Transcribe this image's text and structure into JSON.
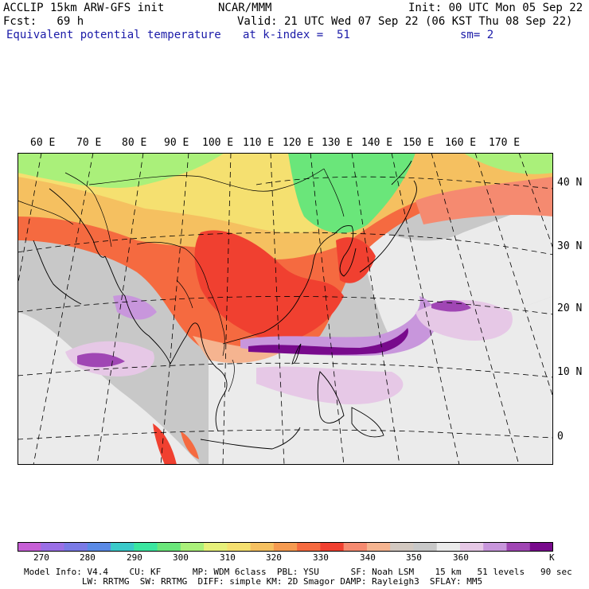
{
  "header": {
    "line1_left": "ACCLIP 15km ARW-GFS init",
    "line1_center": "NCAR/MMM",
    "line1_right": "Init: 00 UTC Mon 05 Sep 22",
    "line2_left": "Fcst:   69 h",
    "line2_right": "Valid: 21 UTC Wed 07 Sep 22 (06 KST Thu 08 Sep 22)",
    "line3_left": "Equivalent potential temperature",
    "line3_mid": "at k-index =  51",
    "line3_right": "sm= 2"
  },
  "map": {
    "longitude_labels": [
      "60 E",
      "70 E",
      "80 E",
      "90 E",
      "100 E",
      "110 E",
      "120 E",
      "130 E",
      "140 E",
      "150 E",
      "160 E",
      "170 E"
    ],
    "latitude_labels": [
      "40 N",
      "30 N",
      "20 N",
      "10 N",
      "0"
    ]
  },
  "colorbar": {
    "unit": "K",
    "tick_labels": [
      "270",
      "280",
      "290",
      "300",
      "310",
      "320",
      "330",
      "340",
      "350",
      "360"
    ],
    "colors": [
      "#c75fd6",
      "#9a6fe6",
      "#7a7ae6",
      "#5a8ae6",
      "#3acaca",
      "#3ae6a0",
      "#6ae67a",
      "#aaf07a",
      "#e6f07a",
      "#f5e070",
      "#f5c060",
      "#f59a50",
      "#f56a40",
      "#f04030",
      "#f58a70",
      "#f5b490",
      "#d2c8c0",
      "#c8c8c8",
      "#ebebeb",
      "#e6c8e6",
      "#c896dc",
      "#a046b4",
      "#780a8c"
    ]
  },
  "footer": {
    "line1": "Model Info: V4.4    CU: KF      MP: WDM 6class  PBL: YSU      SF: Noah LSM    15 km   51 levels   90 sec",
    "line2": "           LW: RRTMG  SW: RRTMG  DIFF: simple KM: 2D Smagor DAMP: Rayleigh3  SFLAY: MM5"
  }
}
